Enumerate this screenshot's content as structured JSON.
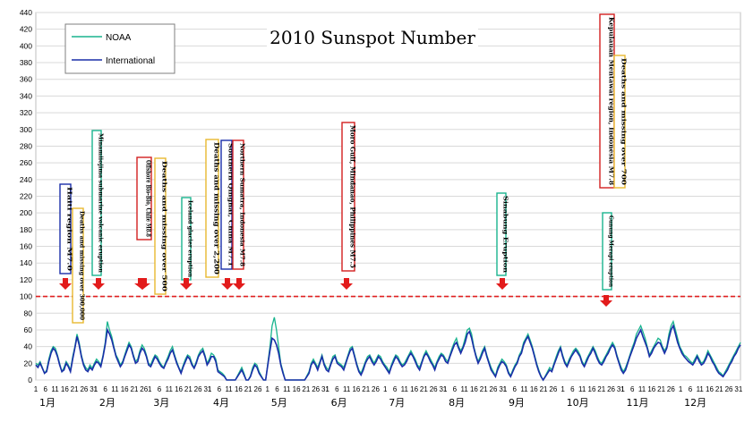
{
  "chart_data": {
    "type": "line",
    "title": "2010 Sunspot Number",
    "ylim": [
      0,
      440
    ],
    "y_ticks": [
      0,
      20,
      40,
      60,
      80,
      100,
      120,
      140,
      160,
      180,
      200,
      220,
      240,
      260,
      280,
      300,
      320,
      340,
      360,
      380,
      400,
      420,
      440
    ],
    "grid": true,
    "legend_position": "top-left",
    "threshold": {
      "value": 100,
      "style": "red-dashed"
    },
    "months": [
      "1月",
      "2月",
      "3月",
      "4月",
      "5月",
      "6月",
      "7月",
      "8月",
      "9月",
      "10月",
      "11月",
      "12月"
    ],
    "day_ticks": [
      "1",
      "6",
      "11",
      "16",
      "21",
      "26",
      "31"
    ],
    "series": [
      {
        "name": "NOAA",
        "color": "#19b48e",
        "values": [
          20,
          18,
          22,
          15,
          8,
          12,
          25,
          35,
          40,
          38,
          30,
          20,
          10,
          15,
          22,
          18,
          12,
          28,
          40,
          55,
          45,
          30,
          20,
          15,
          12,
          18,
          14,
          20,
          25,
          22,
          18,
          30,
          45,
          70,
          60,
          52,
          40,
          30,
          25,
          18,
          22,
          30,
          38,
          45,
          40,
          30,
          22,
          25,
          35,
          42,
          38,
          30,
          20,
          18,
          25,
          30,
          28,
          22,
          18,
          15,
          22,
          28,
          35,
          40,
          30,
          22,
          15,
          10,
          18,
          25,
          30,
          28,
          20,
          15,
          22,
          30,
          35,
          38,
          30,
          20,
          25,
          32,
          30,
          25,
          12,
          10,
          8,
          5,
          0,
          0,
          0,
          0,
          0,
          5,
          10,
          15,
          8,
          0,
          0,
          5,
          15,
          20,
          18,
          10,
          5,
          0,
          0,
          20,
          40,
          65,
          75,
          60,
          40,
          20,
          10,
          0,
          0,
          0,
          0,
          0,
          0,
          0,
          0,
          0,
          0,
          5,
          10,
          20,
          25,
          20,
          15,
          22,
          30,
          20,
          15,
          12,
          20,
          28,
          30,
          22,
          20,
          18,
          15,
          22,
          30,
          38,
          40,
          30,
          20,
          12,
          8,
          15,
          22,
          28,
          30,
          25,
          20,
          25,
          30,
          28,
          22,
          18,
          15,
          10,
          18,
          25,
          30,
          28,
          22,
          18,
          20,
          25,
          30,
          35,
          30,
          25,
          18,
          15,
          22,
          30,
          35,
          30,
          25,
          20,
          15,
          22,
          28,
          32,
          30,
          25,
          22,
          30,
          38,
          45,
          50,
          40,
          35,
          40,
          50,
          60,
          62,
          55,
          40,
          30,
          22,
          28,
          35,
          40,
          30,
          22,
          15,
          10,
          5,
          15,
          20,
          25,
          22,
          18,
          10,
          5,
          12,
          18,
          22,
          30,
          35,
          45,
          50,
          55,
          48,
          40,
          30,
          20,
          12,
          5,
          0,
          5,
          10,
          15,
          12,
          20,
          28,
          35,
          40,
          30,
          22,
          18,
          25,
          30,
          35,
          38,
          35,
          30,
          22,
          18,
          25,
          30,
          35,
          40,
          35,
          28,
          22,
          20,
          25,
          30,
          35,
          40,
          45,
          40,
          30,
          22,
          15,
          10,
          15,
          22,
          30,
          38,
          45,
          55,
          60,
          65,
          58,
          50,
          40,
          30,
          35,
          40,
          45,
          50,
          48,
          40,
          35,
          40,
          55,
          65,
          70,
          60,
          50,
          40,
          35,
          30,
          28,
          25,
          22,
          20,
          25,
          30,
          25,
          20,
          22,
          28,
          35,
          30,
          25,
          20,
          15,
          10,
          8,
          5,
          10,
          15,
          20,
          25,
          30,
          35,
          40,
          45
        ]
      },
      {
        "name": "International",
        "color": "#1a2ea8",
        "values": [
          18,
          15,
          20,
          14,
          8,
          10,
          22,
          32,
          38,
          35,
          28,
          18,
          10,
          12,
          20,
          16,
          10,
          25,
          38,
          52,
          42,
          28,
          18,
          12,
          10,
          15,
          12,
          18,
          22,
          20,
          16,
          28,
          42,
          60,
          55,
          48,
          38,
          28,
          22,
          16,
          20,
          28,
          35,
          42,
          38,
          28,
          20,
          22,
          32,
          38,
          35,
          28,
          18,
          16,
          22,
          28,
          25,
          20,
          16,
          14,
          20,
          25,
          32,
          36,
          28,
          20,
          14,
          8,
          16,
          22,
          28,
          25,
          18,
          14,
          20,
          28,
          32,
          35,
          28,
          18,
          22,
          28,
          28,
          22,
          10,
          8,
          6,
          4,
          0,
          0,
          0,
          0,
          0,
          4,
          8,
          12,
          6,
          0,
          0,
          4,
          12,
          18,
          15,
          8,
          4,
          0,
          0,
          18,
          35,
          50,
          48,
          42,
          32,
          18,
          8,
          0,
          0,
          0,
          0,
          0,
          0,
          0,
          0,
          0,
          0,
          4,
          8,
          18,
          22,
          18,
          12,
          20,
          28,
          18,
          12,
          10,
          18,
          25,
          28,
          20,
          18,
          16,
          12,
          20,
          28,
          35,
          38,
          28,
          18,
          10,
          6,
          12,
          20,
          25,
          28,
          22,
          18,
          22,
          28,
          25,
          20,
          16,
          12,
          8,
          16,
          22,
          28,
          25,
          20,
          16,
          18,
          22,
          28,
          32,
          28,
          22,
          16,
          12,
          20,
          28,
          32,
          28,
          22,
          18,
          12,
          20,
          25,
          30,
          28,
          22,
          20,
          28,
          35,
          42,
          45,
          38,
          32,
          38,
          45,
          55,
          58,
          50,
          38,
          28,
          20,
          25,
          32,
          38,
          28,
          20,
          12,
          8,
          4,
          12,
          18,
          22,
          20,
          16,
          8,
          4,
          10,
          16,
          20,
          28,
          32,
          42,
          48,
          52,
          45,
          38,
          28,
          18,
          10,
          4,
          0,
          4,
          8,
          12,
          10,
          18,
          25,
          32,
          38,
          28,
          20,
          16,
          22,
          28,
          32,
          36,
          32,
          28,
          20,
          16,
          22,
          28,
          32,
          38,
          32,
          25,
          20,
          18,
          22,
          28,
          32,
          38,
          42,
          38,
          28,
          20,
          12,
          8,
          12,
          20,
          28,
          35,
          42,
          50,
          55,
          60,
          52,
          45,
          38,
          28,
          32,
          38,
          42,
          45,
          44,
          38,
          32,
          38,
          50,
          60,
          65,
          55,
          45,
          38,
          32,
          28,
          25,
          22,
          20,
          18,
          22,
          28,
          22,
          18,
          20,
          25,
          32,
          28,
          22,
          18,
          12,
          8,
          6,
          4,
          8,
          12,
          18,
          22,
          28,
          32,
          38,
          42
        ]
      }
    ]
  },
  "events": [
    {
      "label": "Haiti region M7.0",
      "border": "#1a2ea8"
    },
    {
      "label": "Deaths and missing over 300,000",
      "border": "#e8b830"
    },
    {
      "label": "Minamiiojima submarine volcanic eruption",
      "border": "#19b48e"
    },
    {
      "label": "Offshore Bio-Bio, Chile M8.8",
      "border": "#d22020"
    },
    {
      "label": "Deaths and missing over 500",
      "border": "#e8b830"
    },
    {
      "label": "Iceland glacier eruption",
      "border": "#19b48e"
    },
    {
      "label": "Deaths and missing over 2,200",
      "border": "#e8b830"
    },
    {
      "label": "Southern Qinghai, China M7.1",
      "border": "#1a2ea8"
    },
    {
      "label": "Northern Sumatra, Indonesia M7.8",
      "border": "#d22020"
    },
    {
      "label": "Moro Gulf, Mindanao, Philippines M7.5",
      "border": "#d22020"
    },
    {
      "label": "Sinabung Eruption",
      "border": "#19b48e"
    },
    {
      "label": "Kepulauan Mentawai region, Indonesia M7.8",
      "border": "#d22020"
    },
    {
      "label": "Deaths and missing over 700",
      "border": "#e8b830"
    },
    {
      "label": "Gunung Merapi eruption",
      "border": "#19b48e"
    }
  ]
}
